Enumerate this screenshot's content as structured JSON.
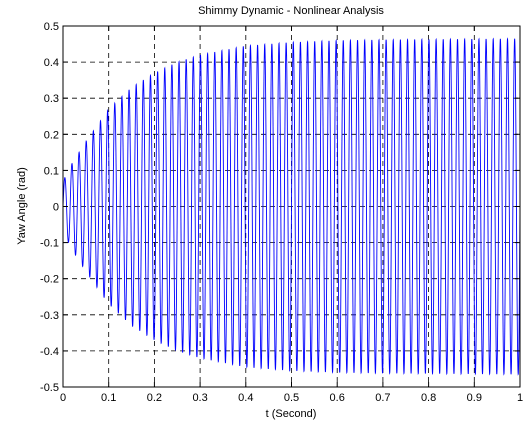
{
  "chart_data": {
    "type": "line",
    "title": "Shimmy Dynamic - Nonlinear Analysis",
    "xlabel": "t (Second)",
    "ylabel": "Yaw Angle (rad)",
    "xlim": [
      0,
      1
    ],
    "ylim": [
      -0.5,
      0.5
    ],
    "xticks": [
      0,
      0.1,
      0.2,
      0.3,
      0.4,
      0.5,
      0.6,
      0.7,
      0.8,
      0.9,
      1
    ],
    "xtick_labels": [
      "0",
      "0.1",
      "0.2",
      "0.3",
      "0.4",
      "0.5",
      "0.6",
      "0.7",
      "0.8",
      "0.9",
      "1"
    ],
    "yticks": [
      -0.5,
      -0.4,
      -0.3,
      -0.2,
      -0.1,
      0,
      0.1,
      0.2,
      0.3,
      0.4,
      0.5
    ],
    "ytick_labels": [
      "-0.5",
      "-0.4",
      "-0.3",
      "-0.2",
      "-0.1",
      "0",
      "0.1",
      "0.2",
      "0.3",
      "0.4",
      "0.5"
    ],
    "grid": true,
    "grid_style": "dashed",
    "line_color": "#0000ff",
    "series": [
      {
        "name": "",
        "oscillation_frequency_hz": 64,
        "envelope_t": [
          0,
          0.02,
          0.05,
          0.1,
          0.15,
          0.2,
          0.25,
          0.3,
          0.4,
          0.5,
          0.6,
          0.7,
          0.8,
          0.9,
          1.0
        ],
        "envelope_amplitude": [
          0.07,
          0.12,
          0.18,
          0.27,
          0.33,
          0.37,
          0.4,
          0.42,
          0.445,
          0.455,
          0.46,
          0.462,
          0.463,
          0.464,
          0.465
        ]
      }
    ]
  }
}
